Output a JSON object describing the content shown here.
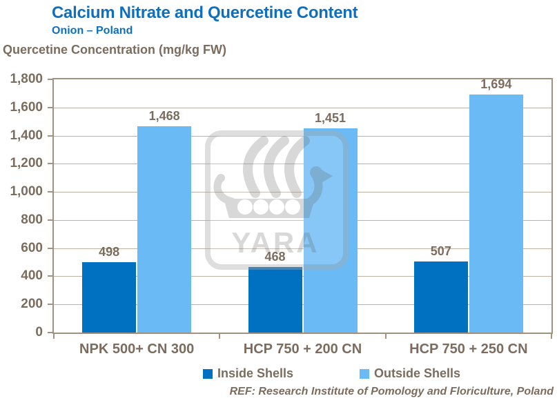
{
  "header": {
    "title": "Calcium Nitrate and Quercetine Content",
    "subtitle": "Onion – Poland"
  },
  "chart_data": {
    "type": "bar",
    "title": "Calcium Nitrate and Quercetine Content",
    "subtitle": "Onion – Poland",
    "ylabel": "Quercetine Concentration (mg/kg FW)",
    "xlabel": "",
    "categories": [
      "NPK 500+ CN 300",
      "HCP 750 + 200 CN",
      "HCP 750 + 250 CN"
    ],
    "series": [
      {
        "name": "Inside Shells",
        "color": "#0070C0",
        "values": [
          498,
          468,
          507
        ]
      },
      {
        "name": "Outside Shells",
        "color": "#6ABAF5",
        "values": [
          1468,
          1451,
          1694
        ]
      }
    ],
    "ylim": [
      0,
      1800
    ],
    "ytick_step": 200,
    "grid": true,
    "legend_position": "bottom"
  },
  "legend": {
    "items": [
      {
        "label": "Inside Shells",
        "color": "#0070C0"
      },
      {
        "label": "Outside Shells",
        "color": "#6ABAF5"
      }
    ]
  },
  "watermark": {
    "text": "YARA"
  },
  "footer": {
    "ref": "REF: Research Institute of Pomology and Floriculture, Poland"
  },
  "colors": {
    "title_blue": "#0E6FC0",
    "axis_text": "#7B6C5E",
    "gridline": "#BFB0A2",
    "frame": "#A39180",
    "inside_bar": "#0070C0",
    "outside_bar": "#6ABAF5",
    "watermark_gray": "#9B9B9B"
  }
}
